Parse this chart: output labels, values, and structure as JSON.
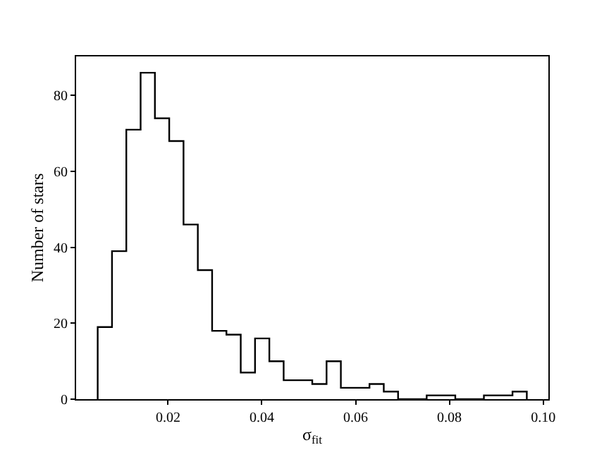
{
  "chart_data": {
    "type": "histogram",
    "xlabel": "σ$_{fit}$",
    "ylabel": "Number of stars",
    "color": "#000000",
    "bins": [
      0.005,
      0.00805,
      0.0111,
      0.01415,
      0.0172,
      0.02025,
      0.0233,
      0.02635,
      0.0294,
      0.03245,
      0.0355,
      0.03855,
      0.0416,
      0.04465,
      0.0477,
      0.05075,
      0.0538,
      0.05685,
      0.0599,
      0.06295,
      0.066,
      0.06905,
      0.0721,
      0.07515,
      0.0782,
      0.08125,
      0.0843,
      0.08735,
      0.0904,
      0.09345,
      0.0965
    ],
    "values": [
      19,
      39,
      71,
      86,
      74,
      68,
      46,
      34,
      18,
      17,
      7,
      16,
      10,
      5,
      5,
      4,
      10,
      3,
      3,
      4,
      2,
      0,
      0,
      1,
      1,
      0,
      0,
      1,
      1,
      2
    ],
    "xlim": [
      0.0004,
      0.1011
    ],
    "ylim": [
      0,
      90.3
    ],
    "xticks": [
      0.02,
      0.04,
      0.06,
      0.08,
      {
        "value": 0.1,
        "label": "0.10"
      }
    ],
    "yticks": [
      0,
      20,
      40,
      60,
      80
    ]
  }
}
